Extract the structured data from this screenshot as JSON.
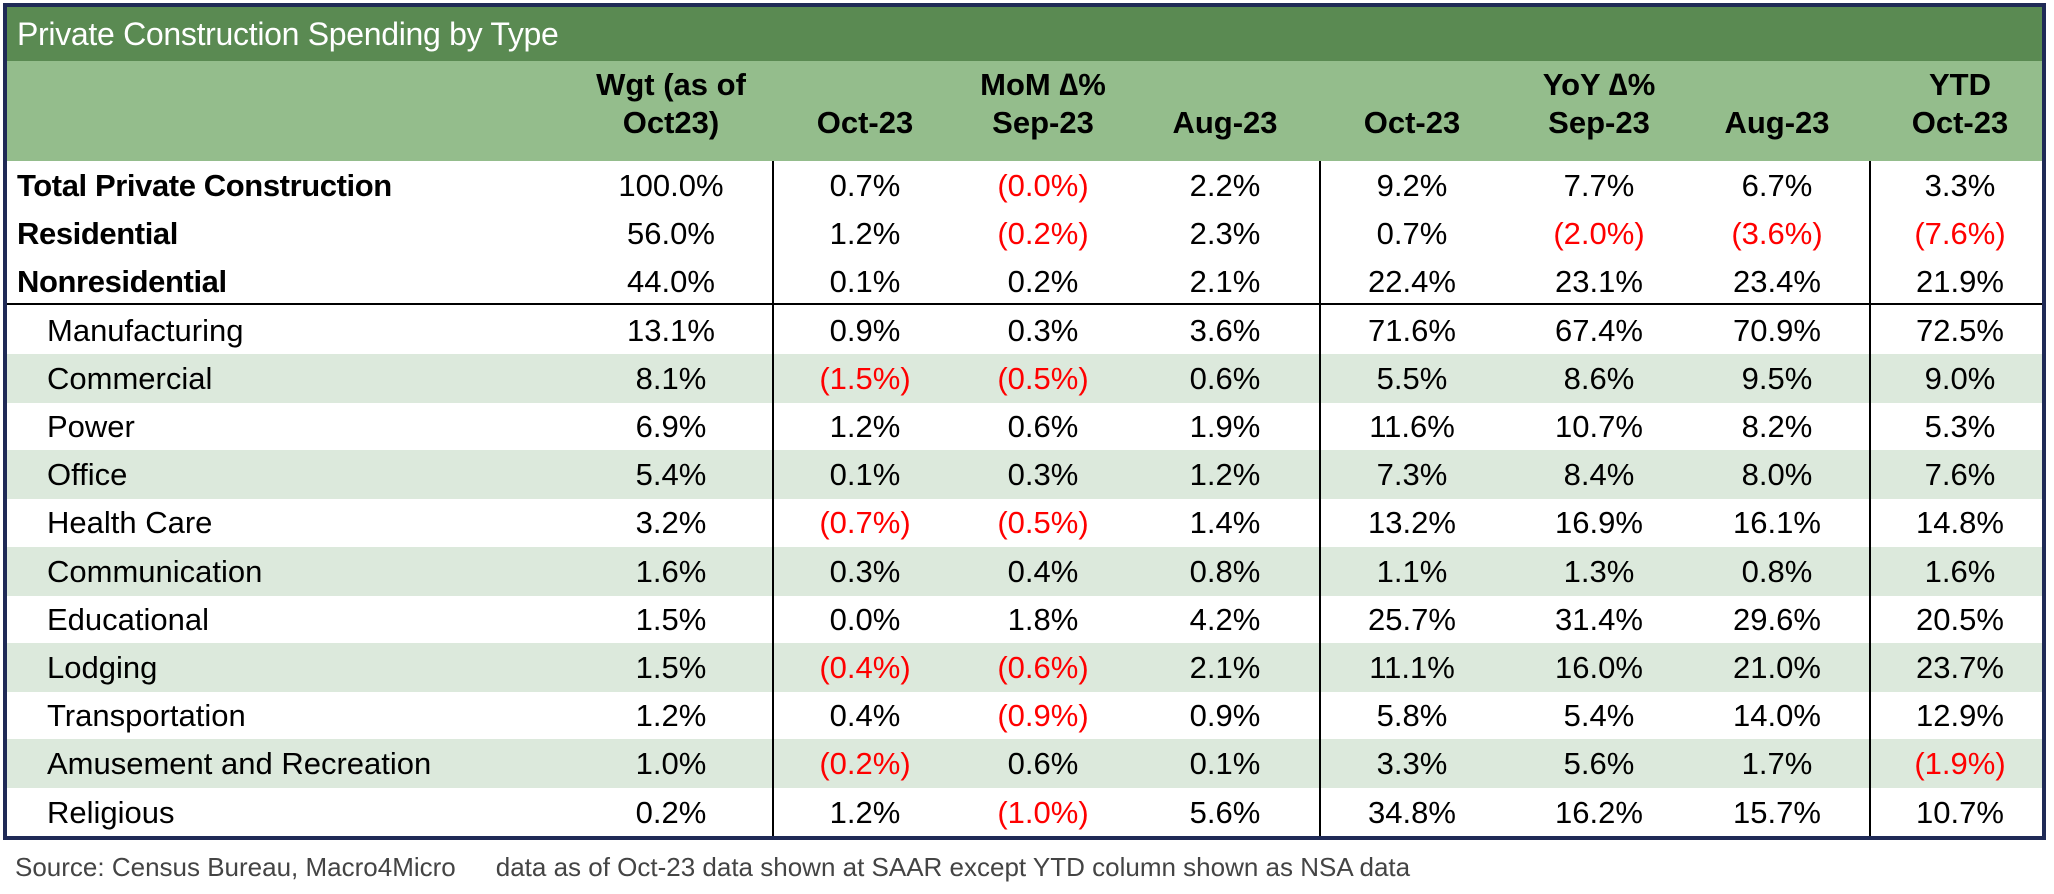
{
  "title": "Private Construction Spending by Type",
  "headers": {
    "wgt_line1": "Wgt (as of",
    "wgt_line2": "Oct23)",
    "mom_group": "MoM ∆%",
    "yoy_group": "YoY ∆%",
    "ytd_group": "YTD",
    "columns": [
      "Oct-23",
      "Sep-23",
      "Aug-23",
      "Oct-23",
      "Sep-23",
      "Aug-23",
      "Oct-23"
    ]
  },
  "rows": [
    {
      "label": "Total Private Construction",
      "bold": true,
      "shaded": false,
      "values": [
        "100.0%",
        "0.7%",
        "(0.0%)",
        "2.2%",
        "9.2%",
        "7.7%",
        "6.7%",
        "3.3%"
      ]
    },
    {
      "label": "Residential",
      "bold": true,
      "shaded": false,
      "values": [
        "56.0%",
        "1.2%",
        "(0.2%)",
        "2.3%",
        "0.7%",
        "(2.0%)",
        "(3.6%)",
        "(7.6%)"
      ]
    },
    {
      "label": "Nonresidential",
      "bold": true,
      "shaded": false,
      "values": [
        "44.0%",
        "0.1%",
        "0.2%",
        "2.1%",
        "22.4%",
        "23.1%",
        "23.4%",
        "21.9%"
      ]
    },
    {
      "label": "Manufacturing",
      "bold": false,
      "shaded": false,
      "values": [
        "13.1%",
        "0.9%",
        "0.3%",
        "3.6%",
        "71.6%",
        "67.4%",
        "70.9%",
        "72.5%"
      ]
    },
    {
      "label": "Commercial",
      "bold": false,
      "shaded": true,
      "values": [
        "8.1%",
        "(1.5%)",
        "(0.5%)",
        "0.6%",
        "5.5%",
        "8.6%",
        "9.5%",
        "9.0%"
      ]
    },
    {
      "label": "Power",
      "bold": false,
      "shaded": false,
      "values": [
        "6.9%",
        "1.2%",
        "0.6%",
        "1.9%",
        "11.6%",
        "10.7%",
        "8.2%",
        "5.3%"
      ]
    },
    {
      "label": "Office",
      "bold": false,
      "shaded": true,
      "values": [
        "5.4%",
        "0.1%",
        "0.3%",
        "1.2%",
        "7.3%",
        "8.4%",
        "8.0%",
        "7.6%"
      ]
    },
    {
      "label": "Health Care",
      "bold": false,
      "shaded": false,
      "values": [
        "3.2%",
        "(0.7%)",
        "(0.5%)",
        "1.4%",
        "13.2%",
        "16.9%",
        "16.1%",
        "14.8%"
      ]
    },
    {
      "label": "Communication",
      "bold": false,
      "shaded": true,
      "values": [
        "1.6%",
        "0.3%",
        "0.4%",
        "0.8%",
        "1.1%",
        "1.3%",
        "0.8%",
        "1.6%"
      ]
    },
    {
      "label": "Educational",
      "bold": false,
      "shaded": false,
      "values": [
        "1.5%",
        "0.0%",
        "1.8%",
        "4.2%",
        "25.7%",
        "31.4%",
        "29.6%",
        "20.5%"
      ]
    },
    {
      "label": "Lodging",
      "bold": false,
      "shaded": true,
      "values": [
        "1.5%",
        "(0.4%)",
        "(0.6%)",
        "2.1%",
        "11.1%",
        "16.0%",
        "21.0%",
        "23.7%"
      ]
    },
    {
      "label": "Transportation",
      "bold": false,
      "shaded": false,
      "values": [
        "1.2%",
        "0.4%",
        "(0.9%)",
        "0.9%",
        "5.8%",
        "5.4%",
        "14.0%",
        "12.9%"
      ]
    },
    {
      "label": "Amusement and Recreation",
      "bold": false,
      "shaded": true,
      "values": [
        "1.0%",
        "(0.2%)",
        "0.6%",
        "0.1%",
        "3.3%",
        "5.6%",
        "1.7%",
        "(1.9%)"
      ]
    },
    {
      "label": "Religious",
      "bold": false,
      "shaded": false,
      "values": [
        "0.2%",
        "1.2%",
        "(1.0%)",
        "5.6%",
        "34.8%",
        "16.2%",
        "15.7%",
        "10.7%"
      ]
    }
  ],
  "footer": {
    "source": "Source: Census Bureau, Macro4Micro",
    "note": "data as of Oct-23 data shown at SAAR except YTD column shown as NSA data"
  },
  "colors": {
    "title_bg": "#5a8a52",
    "header_bg": "#94bd8c",
    "row_shade": "#dce9dc",
    "negative": "#ff0000",
    "frame_border": "#1f2a56"
  }
}
